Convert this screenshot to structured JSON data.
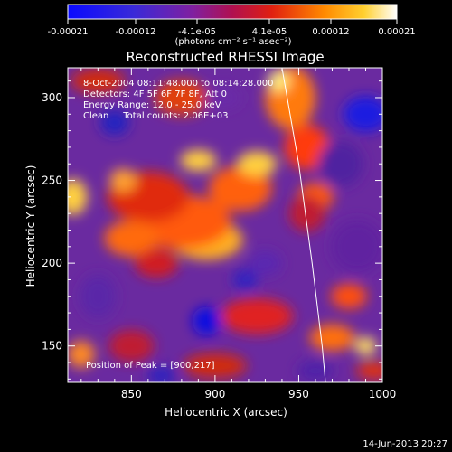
{
  "colorbar": {
    "tick_labels": [
      "-0.00021",
      "-0.00012",
      "-4.1e-05",
      "4.1e-05",
      "0.00012",
      "0.00021"
    ],
    "unit_label": "(photons cm⁻² s⁻¹ asec⁻²)"
  },
  "footer": {
    "date": "14-Jun-2013 20:27"
  },
  "chart_data": {
    "type": "heatmap",
    "title": "Reconstructed RHESSI Image",
    "xlabel": "Heliocentric X (arcsec)",
    "ylabel": "Heliocentric Y (arcsec)",
    "xlim": [
      812,
      1000
    ],
    "ylim": [
      128,
      318
    ],
    "x_ticks": [
      "850",
      "900",
      "950",
      "1000"
    ],
    "y_ticks": [
      "150",
      "200",
      "250",
      "300"
    ],
    "annotations": [
      "8-Oct-2004 08:11:48.000 to 08:14:28.000",
      "Detectors: 4F 5F 6F 7F 8F, Att 0",
      "Energy Range: 12.0 - 25.0 keV",
      "Clean     Total counts: 2.06E+03"
    ],
    "peak_label": "Position of Peak = [900,217]",
    "peak": [
      900,
      217
    ],
    "color_range": [
      -0.00021,
      0.00021
    ],
    "limb_arc": [
      [
        940,
        318
      ],
      [
        950,
        260
      ],
      [
        958,
        200
      ],
      [
        964,
        150
      ],
      [
        966,
        128
      ]
    ]
  }
}
